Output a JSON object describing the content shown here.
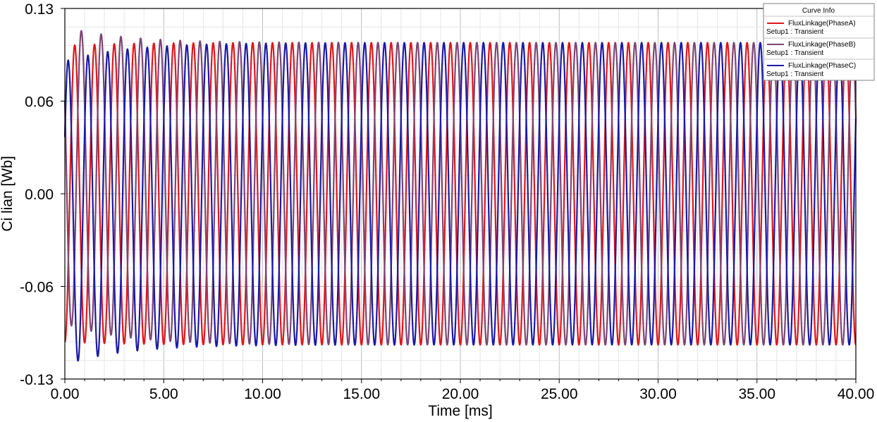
{
  "chart_data": {
    "type": "line",
    "title": "",
    "xlabel": "Time [ms]",
    "ylabel": "Ci lian [Wb]",
    "xlim": [
      0,
      40
    ],
    "ylim": [
      -0.13,
      0.13
    ],
    "x_ticks": [
      "0.00",
      "5.00",
      "10.00",
      "15.00",
      "20.00",
      "25.00",
      "30.00",
      "35.00",
      "40.00"
    ],
    "y_ticks": [
      "0.13",
      "0.06",
      "0.00",
      "-0.06",
      "-0.13"
    ],
    "grid": true,
    "legend_position": "top-right",
    "legend_title": "Curve Info",
    "waveform": "sinusoidal",
    "period_ms": 1.0,
    "steady_state_amplitude_wb": 0.106,
    "series": [
      {
        "name": "FluxLinkage(PhaseA)",
        "sub": "Setup1 : Transient",
        "color": "#e0161c",
        "phase_deg": -90,
        "start_value": -0.107,
        "end_value": -0.105,
        "peaks_wb": [
          0.104,
          0.104,
          0.104,
          0.105,
          0.105,
          0.106
        ]
      },
      {
        "name": "FluxLinkage(PhaseB)",
        "sub": "Setup1 : Transient",
        "color": "#7c4675",
        "phase_deg": 150,
        "start_value": 0.04,
        "end_value": 0.055,
        "peaks_wb": [
          0.117,
          0.114,
          0.11,
          0.108,
          0.107,
          0.106
        ],
        "troughs_wb": [
          -0.091,
          -0.095,
          -0.099,
          -0.102,
          -0.104,
          -0.105
        ]
      },
      {
        "name": "FluxLinkage(PhaseC)",
        "sub": "Setup1 : Transient",
        "color": "#1a1aa6",
        "phase_deg": 30,
        "start_value": 0.05,
        "end_value": 0.04,
        "peaks_wb": [
          0.093,
          0.097,
          0.1,
          0.103,
          0.105,
          0.106
        ],
        "troughs_wb": [
          -0.12,
          -0.117,
          -0.113,
          -0.11,
          -0.107,
          -0.106
        ]
      }
    ]
  }
}
